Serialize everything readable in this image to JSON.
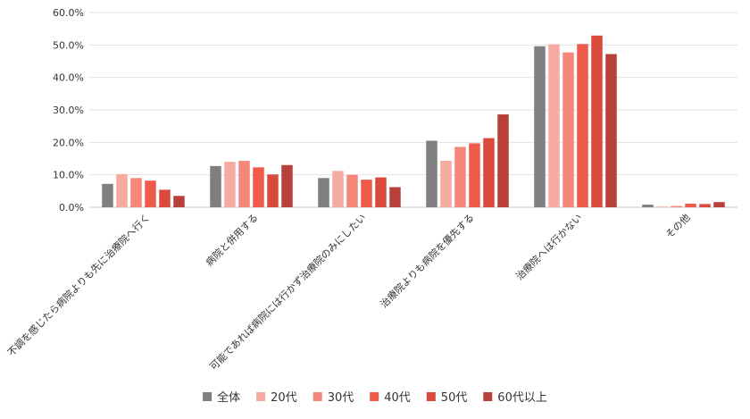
{
  "chart_data": {
    "type": "bar",
    "title": "",
    "xlabel": "",
    "ylabel": "",
    "ylim": [
      0,
      60
    ],
    "y_ticks": [
      "0.0%",
      "10.0%",
      "20.0%",
      "30.0%",
      "40.0%",
      "50.0%",
      "60.0%"
    ],
    "y_unit": "%",
    "grid": true,
    "legend_position": "bottom",
    "categories": [
      "不調を感じたら病院よりも先に治療院へ行く",
      "病院と併用する",
      "可能であれば病院には行かず治療院のみにしたい",
      "治療院よりも病院を優先する",
      "治療院へは行かない",
      "その他"
    ],
    "series": [
      {
        "name": "全体",
        "color": "#7f7f7f",
        "values": [
          7.2,
          12.7,
          9.0,
          20.5,
          49.6,
          0.8
        ]
      },
      {
        "name": "20代",
        "color": "#f7aaa0",
        "values": [
          10.2,
          14.0,
          11.2,
          14.3,
          50.2,
          0.2
        ]
      },
      {
        "name": "30代",
        "color": "#f5867a",
        "values": [
          9.0,
          14.3,
          10.0,
          18.6,
          47.7,
          0.4
        ]
      },
      {
        "name": "40代",
        "color": "#ef5b4b",
        "values": [
          8.2,
          12.3,
          8.5,
          19.7,
          50.3,
          1.1
        ]
      },
      {
        "name": "50代",
        "color": "#d94a3d",
        "values": [
          5.4,
          10.1,
          9.2,
          21.3,
          52.9,
          1.0
        ]
      },
      {
        "name": "60代以上",
        "color": "#b8403a",
        "values": [
          3.5,
          13.0,
          6.2,
          28.6,
          47.2,
          1.6
        ]
      }
    ]
  }
}
